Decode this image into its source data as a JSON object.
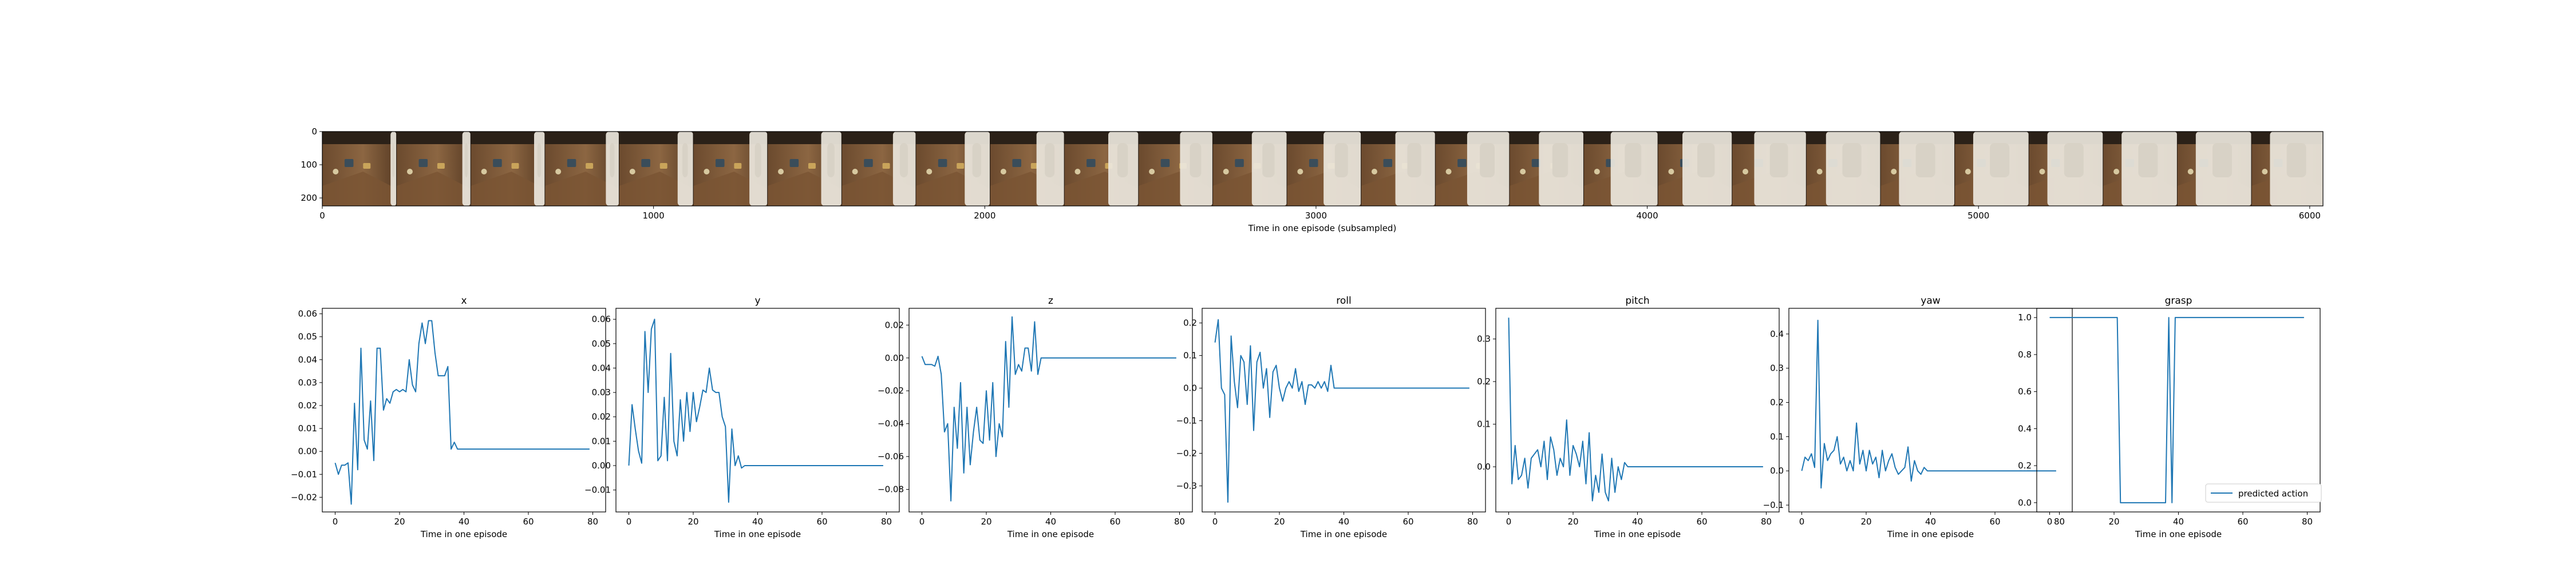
{
  "colors": {
    "series": "#1f77b4",
    "axes": "#000000",
    "background": "#ffffff",
    "legend_edge": "#cccccc"
  },
  "filmstrip": {
    "xlabel": "Time in one episode (subsampled)",
    "xticks": [
      "0",
      "1000",
      "2000",
      "3000",
      "4000",
      "5000",
      "6000"
    ],
    "xtick_values": [
      0,
      1000,
      2000,
      3000,
      4000,
      5000,
      6000
    ],
    "yticks": [
      "0",
      "100",
      "200"
    ],
    "yticks_values": [
      0,
      100,
      200
    ],
    "xlim": [
      0,
      6040
    ],
    "ylim": [
      224,
      0
    ],
    "frame_count": 27,
    "frame_width": 224
  },
  "legend": {
    "label": "predicted action",
    "placement": "lower-right"
  },
  "chart_data": [
    {
      "type": "line",
      "title": "x",
      "xlabel": "Time in one episode",
      "ylabel": "",
      "xlim": [
        -4,
        84
      ],
      "ylim": [
        -0.0264,
        0.0624
      ],
      "xticks": [
        "0",
        "20",
        "40",
        "60",
        "80"
      ],
      "xtick_values": [
        0,
        20,
        40,
        60,
        80
      ],
      "yticks": [
        "−0.02",
        "−0.01",
        "0.00",
        "0.01",
        "0.02",
        "0.03",
        "0.04",
        "0.05",
        "0.06"
      ],
      "ytick_values": [
        -0.02,
        -0.01,
        0,
        0.01,
        0.02,
        0.03,
        0.04,
        0.05,
        0.06
      ],
      "series": [
        {
          "values": [
            -0.005,
            -0.01,
            -0.006,
            -0.006,
            -0.005,
            -0.023,
            0.021,
            -0.008,
            0.045,
            0.005,
            0.001,
            0.022,
            -0.004,
            0.045,
            0.045,
            0.018,
            0.023,
            0.021,
            0.026,
            0.027,
            0.026,
            0.027,
            0.026,
            0.04,
            0.029,
            0.026,
            0.047,
            0.056,
            0.047,
            0.057,
            0.057,
            0.043,
            0.033,
            0.033,
            0.033,
            0.037,
            0.001,
            0.004,
            0.001,
            0.001,
            0.001,
            0.001,
            0.001,
            0.001,
            0.001,
            0.001,
            0.001,
            0.001,
            0.001,
            0.001,
            0.001,
            0.001,
            0.001,
            0.001,
            0.001,
            0.001,
            0.001,
            0.001,
            0.001,
            0.001,
            0.001,
            0.001,
            0.001,
            0.001,
            0.001,
            0.001,
            0.001,
            0.001,
            0.001,
            0.001,
            0.001,
            0.001,
            0.001,
            0.001,
            0.001,
            0.001,
            0.001,
            0.001,
            0.001,
            0.001
          ]
        }
      ]
    },
    {
      "type": "line",
      "title": "y",
      "xlabel": "Time in one episode",
      "ylabel": "",
      "xlim": [
        -4,
        84
      ],
      "ylim": [
        -0.019,
        0.0645
      ],
      "xticks": [
        "0",
        "20",
        "40",
        "60",
        "80"
      ],
      "xtick_values": [
        0,
        20,
        40,
        60,
        80
      ],
      "yticks": [
        "−0.01",
        "0.00",
        "0.01",
        "0.02",
        "0.03",
        "0.04",
        "0.05",
        "0.06"
      ],
      "ytick_values": [
        -0.01,
        0,
        0.01,
        0.02,
        0.03,
        0.04,
        0.05,
        0.06
      ],
      "series": [
        {
          "values": [
            0.0,
            0.025,
            0.015,
            0.006,
            0.001,
            0.055,
            0.03,
            0.056,
            0.06,
            0.002,
            0.004,
            0.028,
            0.002,
            0.046,
            0.01,
            0.004,
            0.027,
            0.01,
            0.03,
            0.014,
            0.03,
            0.018,
            0.024,
            0.031,
            0.03,
            0.04,
            0.031,
            0.03,
            0.03,
            0.02,
            0.016,
            -0.015,
            0.015,
            0.0,
            0.004,
            -0.001,
            0.0,
            0.0,
            0.0,
            0.0,
            0.0,
            0.0,
            0.0,
            0.0,
            0.0,
            0.0,
            0.0,
            0.0,
            0.0,
            0.0,
            0.0,
            0.0,
            0.0,
            0.0,
            0.0,
            0.0,
            0.0,
            0.0,
            0.0,
            0.0,
            0.0,
            0.0,
            0.0,
            0.0,
            0.0,
            0.0,
            0.0,
            0.0,
            0.0,
            0.0,
            0.0,
            0.0,
            0.0,
            0.0,
            0.0,
            0.0,
            0.0,
            0.0,
            0.0,
            0.0
          ]
        }
      ]
    },
    {
      "type": "line",
      "title": "z",
      "xlabel": "Time in one episode",
      "ylabel": "",
      "xlim": [
        -4,
        84
      ],
      "ylim": [
        -0.0937,
        0.0302
      ],
      "xticks": [
        "0",
        "20",
        "40",
        "60",
        "80"
      ],
      "xtick_values": [
        0,
        20,
        40,
        60,
        80
      ],
      "yticks": [
        "−0.08",
        "−0.06",
        "−0.04",
        "−0.02",
        "0.00",
        "0.02"
      ],
      "ytick_values": [
        -0.08,
        -0.06,
        -0.04,
        -0.02,
        0,
        0.02
      ],
      "series": [
        {
          "values": [
            0.001,
            -0.004,
            -0.004,
            -0.004,
            -0.005,
            0.001,
            -0.01,
            -0.045,
            -0.04,
            -0.087,
            -0.03,
            -0.055,
            -0.015,
            -0.07,
            -0.03,
            -0.065,
            -0.045,
            -0.03,
            -0.05,
            -0.052,
            -0.02,
            -0.05,
            -0.015,
            -0.06,
            -0.04,
            -0.048,
            0.01,
            -0.03,
            0.025,
            -0.01,
            -0.004,
            -0.008,
            0.006,
            0.006,
            -0.008,
            0.022,
            -0.01,
            0.0,
            0.0,
            0.0,
            0.0,
            0.0,
            0.0,
            0.0,
            0.0,
            0.0,
            0.0,
            0.0,
            0.0,
            0.0,
            0.0,
            0.0,
            0.0,
            0.0,
            0.0,
            0.0,
            0.0,
            0.0,
            0.0,
            0.0,
            0.0,
            0.0,
            0.0,
            0.0,
            0.0,
            0.0,
            0.0,
            0.0,
            0.0,
            0.0,
            0.0,
            0.0,
            0.0,
            0.0,
            0.0,
            0.0,
            0.0,
            0.0,
            0.0,
            0.0
          ]
        }
      ]
    },
    {
      "type": "line",
      "title": "roll",
      "xlabel": "Time in one episode",
      "ylabel": "",
      "xlim": [
        -4,
        84
      ],
      "ylim": [
        -0.38,
        0.245
      ],
      "xticks": [
        "0",
        "20",
        "40",
        "60",
        "80"
      ],
      "xtick_values": [
        0,
        20,
        40,
        60,
        80
      ],
      "yticks": [
        "−0.3",
        "−0.2",
        "−0.1",
        "0.0",
        "0.1",
        "0.2"
      ],
      "ytick_values": [
        -0.3,
        -0.2,
        -0.1,
        0,
        0.1,
        0.2
      ],
      "series": [
        {
          "values": [
            0.14,
            0.21,
            0.0,
            -0.02,
            -0.35,
            0.16,
            0.02,
            -0.06,
            0.1,
            0.08,
            -0.05,
            0.13,
            -0.13,
            0.08,
            0.11,
            0.0,
            0.06,
            -0.09,
            0.05,
            0.07,
            0.0,
            -0.04,
            0.0,
            0.02,
            0.0,
            0.06,
            -0.01,
            0.02,
            -0.05,
            0.01,
            0.01,
            0.0,
            0.02,
            0.0,
            0.02,
            -0.01,
            0.07,
            0.0,
            0.0,
            0.0,
            0.0,
            0.0,
            0.0,
            0.0,
            0.0,
            0.0,
            0.0,
            0.0,
            0.0,
            0.0,
            0.0,
            0.0,
            0.0,
            0.0,
            0.0,
            0.0,
            0.0,
            0.0,
            0.0,
            0.0,
            0.0,
            0.0,
            0.0,
            0.0,
            0.0,
            0.0,
            0.0,
            0.0,
            0.0,
            0.0,
            0.0,
            0.0,
            0.0,
            0.0,
            0.0,
            0.0,
            0.0,
            0.0,
            0.0,
            0.0
          ]
        }
      ]
    },
    {
      "type": "line",
      "title": "pitch",
      "xlabel": "Time in one episode",
      "ylabel": "",
      "xlim": [
        -4,
        84
      ],
      "ylim": [
        -0.106,
        0.372
      ],
      "xticks": [
        "0",
        "20",
        "40",
        "60",
        "80"
      ],
      "xtick_values": [
        0,
        20,
        40,
        60,
        80
      ],
      "yticks": [
        "0.0",
        "0.1",
        "0.2",
        "0.3"
      ],
      "ytick_values": [
        0,
        0.1,
        0.2,
        0.3
      ],
      "series": [
        {
          "values": [
            0.35,
            -0.04,
            0.05,
            -0.03,
            -0.02,
            0.02,
            -0.05,
            0.02,
            0.03,
            0.04,
            0.0,
            0.06,
            -0.03,
            0.07,
            0.04,
            -0.02,
            0.02,
            0.0,
            0.11,
            -0.02,
            0.05,
            0.03,
            0.0,
            0.06,
            -0.04,
            0.08,
            -0.08,
            -0.02,
            -0.06,
            0.03,
            -0.06,
            -0.08,
            0.02,
            -0.06,
            0.0,
            -0.03,
            0.01,
            0.0,
            0.0,
            0.0,
            0.0,
            0.0,
            0.0,
            0.0,
            0.0,
            0.0,
            0.0,
            0.0,
            0.0,
            0.0,
            0.0,
            0.0,
            0.0,
            0.0,
            0.0,
            0.0,
            0.0,
            0.0,
            0.0,
            0.0,
            0.0,
            0.0,
            0.0,
            0.0,
            0.0,
            0.0,
            0.0,
            0.0,
            0.0,
            0.0,
            0.0,
            0.0,
            0.0,
            0.0,
            0.0,
            0.0,
            0.0,
            0.0,
            0.0,
            0.0
          ]
        }
      ]
    },
    {
      "type": "line",
      "title": "yaw",
      "xlabel": "Time in one episode",
      "ylabel": "",
      "xlim": [
        -4,
        84
      ],
      "ylim": [
        -0.12,
        0.475
      ],
      "xticks": [
        "0",
        "20",
        "40",
        "60",
        "80"
      ],
      "xtick_values": [
        0,
        20,
        40,
        60,
        80
      ],
      "yticks": [
        "−0.1",
        "0.0",
        "0.1",
        "0.2",
        "0.3",
        "0.4"
      ],
      "ytick_values": [
        -0.1,
        0,
        0.1,
        0.2,
        0.3,
        0.4
      ],
      "series": [
        {
          "values": [
            0.0,
            0.04,
            0.03,
            0.05,
            0.01,
            0.44,
            -0.05,
            0.08,
            0.03,
            0.05,
            0.06,
            0.1,
            0.02,
            0.04,
            0.0,
            0.03,
            0.0,
            0.14,
            0.02,
            0.06,
            0.0,
            0.06,
            0.02,
            0.04,
            -0.02,
            0.06,
            0.0,
            0.03,
            0.05,
            0.01,
            -0.01,
            0.0,
            0.01,
            0.07,
            -0.03,
            0.03,
            0.0,
            -0.01,
            0.01,
            0.0,
            0.0,
            0.0,
            0.0,
            0.0,
            0.0,
            0.0,
            0.0,
            0.0,
            0.0,
            0.0,
            0.0,
            0.0,
            0.0,
            0.0,
            0.0,
            0.0,
            0.0,
            0.0,
            0.0,
            0.0,
            0.0,
            0.0,
            0.0,
            0.0,
            0.0,
            0.0,
            0.0,
            0.0,
            0.0,
            0.0,
            0.0,
            0.0,
            0.0,
            0.0,
            0.0,
            0.0,
            0.0,
            0.0,
            0.0,
            0.0
          ]
        }
      ]
    },
    {
      "type": "line",
      "title": "grasp",
      "xlabel": "Time in one episode",
      "ylabel": "",
      "xlim": [
        -4,
        84
      ],
      "ylim": [
        -0.05,
        1.05
      ],
      "xticks": [
        "0",
        "20",
        "40",
        "60",
        "80"
      ],
      "xtick_values": [
        0,
        20,
        40,
        60,
        80
      ],
      "yticks": [
        "0.0",
        "0.2",
        "0.4",
        "0.6",
        "0.8",
        "1.0"
      ],
      "ytick_values": [
        0,
        0.2,
        0.4,
        0.6,
        0.8,
        1.0
      ],
      "series": [
        {
          "name": "predicted action",
          "values": [
            1,
            1,
            1,
            1,
            1,
            1,
            1,
            1,
            1,
            1,
            1,
            1,
            1,
            1,
            1,
            1,
            1,
            1,
            1,
            1,
            1,
            1,
            0,
            0,
            0,
            0,
            0,
            0,
            0,
            0,
            0,
            0,
            0,
            0,
            0,
            0,
            0,
            1,
            0,
            1,
            1,
            1,
            1,
            1,
            1,
            1,
            1,
            1,
            1,
            1,
            1,
            1,
            1,
            1,
            1,
            1,
            1,
            1,
            1,
            1,
            1,
            1,
            1,
            1,
            1,
            1,
            1,
            1,
            1,
            1,
            1,
            1,
            1,
            1,
            1,
            1,
            1,
            1,
            1,
            1
          ]
        }
      ]
    }
  ]
}
